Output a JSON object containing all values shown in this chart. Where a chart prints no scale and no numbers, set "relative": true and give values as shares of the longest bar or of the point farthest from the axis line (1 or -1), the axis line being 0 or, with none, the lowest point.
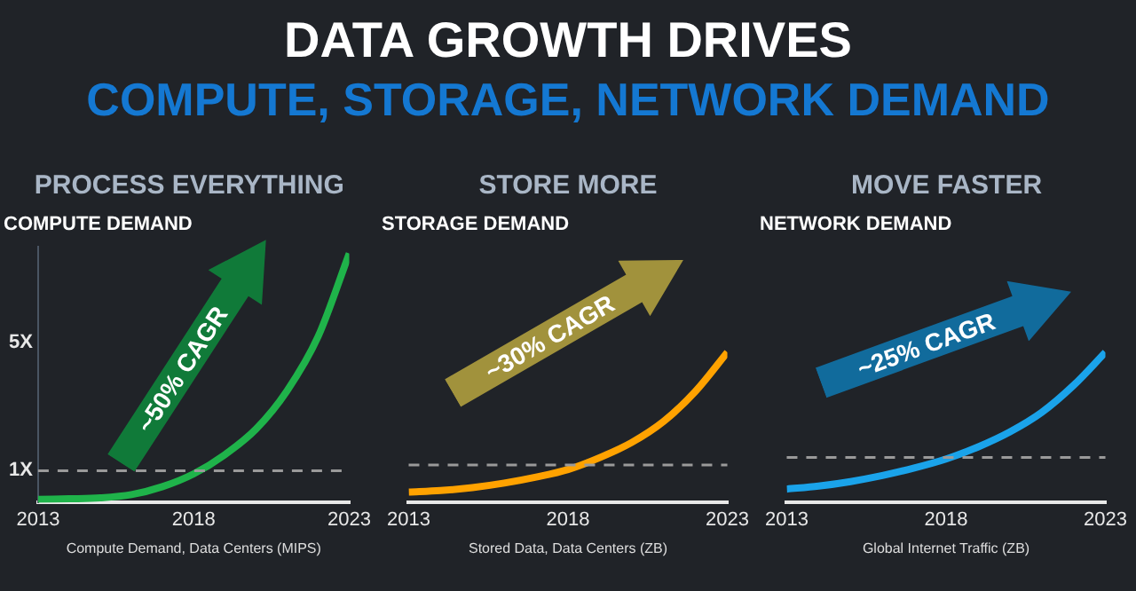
{
  "chart_data": [
    {
      "type": "other",
      "title": "DATA GROWTH DRIVES",
      "subtitle": "COMPUTE, STORAGE, NETWORK DEMAND"
    },
    {
      "type": "line",
      "subtitle": "PROCESS EVERYTHING",
      "title": "COMPUTE DEMAND",
      "xlabel": "Compute Demand, Data Centers (MIPS)",
      "x": [
        2013,
        2014,
        2015,
        2016,
        2017,
        2018,
        2019,
        2020,
        2021,
        2022,
        2023
      ],
      "xlim": [
        2013,
        2023
      ],
      "xticks": [
        2013,
        2018,
        2023
      ],
      "ylim": [
        0,
        8
      ],
      "yticks": [
        {
          "value": 1,
          "label": "1X"
        },
        {
          "value": 5,
          "label": "5X"
        }
      ],
      "series": [
        {
          "color": "#1fb34a",
          "values": [
            0.1,
            0.12,
            0.15,
            0.25,
            0.5,
            0.9,
            1.5,
            2.3,
            3.5,
            5.2,
            7.8
          ]
        }
      ],
      "ref_lines": [
        {
          "axis": "y",
          "value": 1,
          "color": "#9a9a9a",
          "line_style": "dashed"
        }
      ],
      "annotations": [
        "~50% CAGR"
      ],
      "marker": "none",
      "line_style": "solid",
      "grid": false,
      "legend": false
    },
    {
      "type": "line",
      "subtitle": "STORE MORE",
      "title": "STORAGE DEMAND",
      "xlabel": "Stored Data, Data Centers (ZB)",
      "relative": true,
      "x": [
        2013,
        2014,
        2015,
        2016,
        2017,
        2018,
        2019,
        2020,
        2021,
        2022,
        2023
      ],
      "xlim": [
        2013,
        2023
      ],
      "xticks": [
        2013,
        2018,
        2023
      ],
      "series": [
        {
          "color": "#ffa200",
          "values": [
            0.07,
            0.08,
            0.1,
            0.13,
            0.17,
            0.22,
            0.3,
            0.4,
            0.54,
            0.74,
            1
          ]
        }
      ],
      "ref_lines": [
        {
          "axis": "y",
          "value": 0.25,
          "color": "#9a9a9a",
          "line_style": "dashed"
        }
      ],
      "annotations": [
        "~30% CAGR"
      ],
      "marker": "none",
      "line_style": "solid",
      "grid": false,
      "legend": false
    },
    {
      "type": "line",
      "subtitle": "MOVE FASTER",
      "title": "NETWORK DEMAND",
      "xlabel": "Global Internet Traffic (ZB)",
      "relative": true,
      "x": [
        2013,
        2014,
        2015,
        2016,
        2017,
        2018,
        2019,
        2020,
        2021,
        2022,
        2023
      ],
      "xlim": [
        2013,
        2023
      ],
      "xticks": [
        2013,
        2018,
        2023
      ],
      "series": [
        {
          "color": "#1aa3ea",
          "values": [
            0.09,
            0.11,
            0.14,
            0.18,
            0.23,
            0.29,
            0.37,
            0.47,
            0.6,
            0.78,
            1
          ]
        }
      ],
      "ref_lines": [
        {
          "axis": "y",
          "value": 0.3,
          "color": "#9a9a9a",
          "line_style": "dashed"
        }
      ],
      "annotations": [
        "~25% CAGR"
      ],
      "marker": "none",
      "line_style": "solid",
      "grid": false,
      "legend": false
    }
  ]
}
